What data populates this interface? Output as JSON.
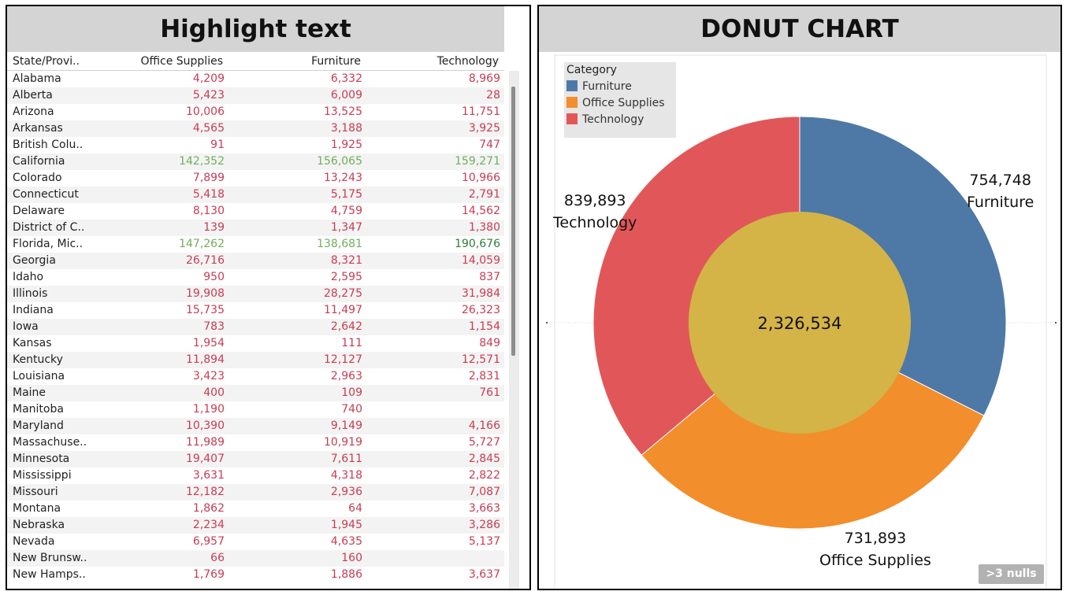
{
  "highlight_table": {
    "title": "Highlight text",
    "columns": [
      "State/Provi..",
      "Office Supplies",
      "Furniture",
      "Technology"
    ],
    "rows": [
      {
        "state": "Alabama",
        "office_supplies": "4,209",
        "furniture": "6,332",
        "technology": "8,969"
      },
      {
        "state": "Alberta",
        "office_supplies": "5,423",
        "furniture": "6,009",
        "technology": "28"
      },
      {
        "state": "Arizona",
        "office_supplies": "10,006",
        "furniture": "13,525",
        "technology": "11,751"
      },
      {
        "state": "Arkansas",
        "office_supplies": "4,565",
        "furniture": "3,188",
        "technology": "3,925"
      },
      {
        "state": "British Colu..",
        "office_supplies": "91",
        "furniture": "1,925",
        "technology": "747"
      },
      {
        "state": "California",
        "office_supplies": "142,352",
        "furniture": "156,065",
        "technology": "159,271"
      },
      {
        "state": "Colorado",
        "office_supplies": "7,899",
        "furniture": "13,243",
        "technology": "10,966"
      },
      {
        "state": "Connecticut",
        "office_supplies": "5,418",
        "furniture": "5,175",
        "technology": "2,791"
      },
      {
        "state": "Delaware",
        "office_supplies": "8,130",
        "furniture": "4,759",
        "technology": "14,562"
      },
      {
        "state": "District of C..",
        "office_supplies": "139",
        "furniture": "1,347",
        "technology": "1,380"
      },
      {
        "state": "Florida, Mic..",
        "office_supplies": "147,262",
        "furniture": "138,681",
        "technology": "190,676"
      },
      {
        "state": "Georgia",
        "office_supplies": "26,716",
        "furniture": "8,321",
        "technology": "14,059"
      },
      {
        "state": "Idaho",
        "office_supplies": "950",
        "furniture": "2,595",
        "technology": "837"
      },
      {
        "state": "Illinois",
        "office_supplies": "19,908",
        "furniture": "28,275",
        "technology": "31,984"
      },
      {
        "state": "Indiana",
        "office_supplies": "15,735",
        "furniture": "11,497",
        "technology": "26,323"
      },
      {
        "state": "Iowa",
        "office_supplies": "783",
        "furniture": "2,642",
        "technology": "1,154"
      },
      {
        "state": "Kansas",
        "office_supplies": "1,954",
        "furniture": "111",
        "technology": "849"
      },
      {
        "state": "Kentucky",
        "office_supplies": "11,894",
        "furniture": "12,127",
        "technology": "12,571"
      },
      {
        "state": "Louisiana",
        "office_supplies": "3,423",
        "furniture": "2,963",
        "technology": "2,831"
      },
      {
        "state": "Maine",
        "office_supplies": "400",
        "furniture": "109",
        "technology": "761"
      },
      {
        "state": "Manitoba",
        "office_supplies": "1,190",
        "furniture": "740",
        "technology": ""
      },
      {
        "state": "Maryland",
        "office_supplies": "10,390",
        "furniture": "9,149",
        "technology": "4,166"
      },
      {
        "state": "Massachuse..",
        "office_supplies": "11,989",
        "furniture": "10,919",
        "technology": "5,727"
      },
      {
        "state": "Minnesota",
        "office_supplies": "19,407",
        "furniture": "7,611",
        "technology": "2,845"
      },
      {
        "state": "Mississippi",
        "office_supplies": "3,631",
        "furniture": "4,318",
        "technology": "2,822"
      },
      {
        "state": "Missouri",
        "office_supplies": "12,182",
        "furniture": "2,936",
        "technology": "7,087"
      },
      {
        "state": "Montana",
        "office_supplies": "1,862",
        "furniture": "64",
        "technology": "3,663"
      },
      {
        "state": "Nebraska",
        "office_supplies": "2,234",
        "furniture": "1,945",
        "technology": "3,286"
      },
      {
        "state": "Nevada",
        "office_supplies": "6,957",
        "furniture": "4,635",
        "technology": "5,137"
      },
      {
        "state": "New Brunsw..",
        "office_supplies": "66",
        "furniture": "160",
        "technology": ""
      },
      {
        "state": "New Hamps..",
        "office_supplies": "1,769",
        "furniture": "1,886",
        "technology": "3,637"
      }
    ],
    "colors": {
      "low": "#c83c54",
      "high": "#6fae5c",
      "highest": "#2f7d3a"
    }
  },
  "donut": {
    "title": "DONUT CHART",
    "legend_title": "Category",
    "total_label": "2,326,534",
    "nulls_badge": ">3 nulls",
    "colors": {
      "Furniture": "#4e79a7",
      "Office Supplies": "#f28e2b",
      "Technology": "#e15759",
      "center": "#d4b446"
    }
  },
  "chart_data": {
    "type": "pie",
    "variant": "donut",
    "title": "DONUT CHART",
    "legend_title": "Category",
    "legend_position": "top-left",
    "categories": [
      "Furniture",
      "Office Supplies",
      "Technology"
    ],
    "values": [
      754748,
      731893,
      839893
    ],
    "value_labels": [
      "754,748",
      "731,893",
      "839,893"
    ],
    "total": 2326534,
    "total_label": "2,326,534",
    "start_angle_deg": 0,
    "direction": "clockwise"
  }
}
